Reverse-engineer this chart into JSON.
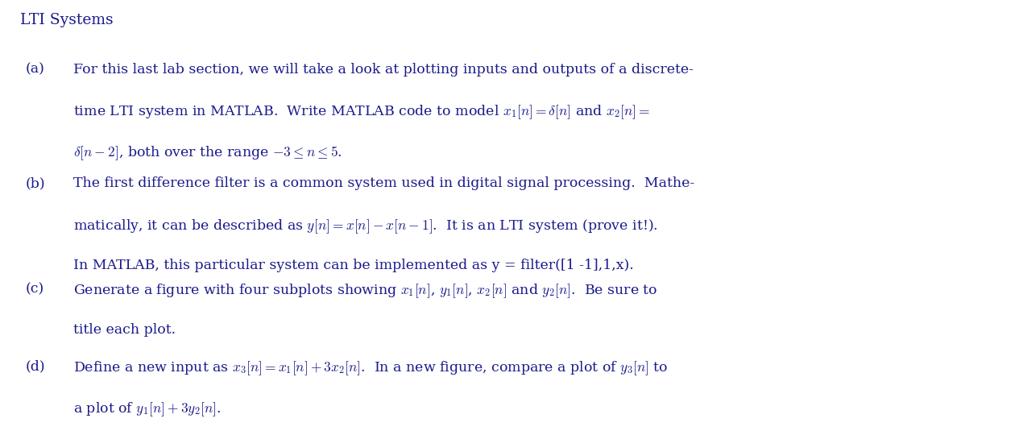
{
  "title": "LTI Systems",
  "title_color": "#1a1a8c",
  "background_color": "#ffffff",
  "text_color": "#1a1a8c",
  "figsize": [
    12.65,
    5.35
  ],
  "dpi": 100,
  "items": [
    {
      "label": "(a)",
      "lines": [
        "For this last lab section, we will take a look at plotting inputs and outputs of a discrete-",
        "time LTI system in {\\scshape Matlab}.  Write {\\scshape Matlab} code to model $x_1[n] = \\delta[n]$ and $x_2[n] =$",
        "$\\delta[n-2]$, both over the range $-3 \\leq n \\leq 5$."
      ]
    },
    {
      "label": "(b)",
      "lines": [
        "The first difference filter is a common system used in digital signal processing.  Mathe-",
        "matically, it can be described as $y[n] = x[n] - x[n-1]$.  It is an LTI system (prove it!).",
        "In {\\scshape Matlab}, this particular system can be implemented as {\\ttfamily y = filter([1 -1],1,x)}."
      ]
    },
    {
      "label": "(c)",
      "lines": [
        "Generate a figure with four subplots showing $x_1[n]$, $y_1[n]$, $x_2[n]$ and $y_2[n]$.  Be sure to",
        "title each plot."
      ]
    },
    {
      "label": "(d)",
      "lines": [
        "Define a new input as $x_3[n] = x_1[n] + 3x_2[n]$.  In a new figure, compare a plot of $y_3[n]$ to",
        "a plot of $y_1[n] + 3y_2[n]$."
      ]
    }
  ]
}
